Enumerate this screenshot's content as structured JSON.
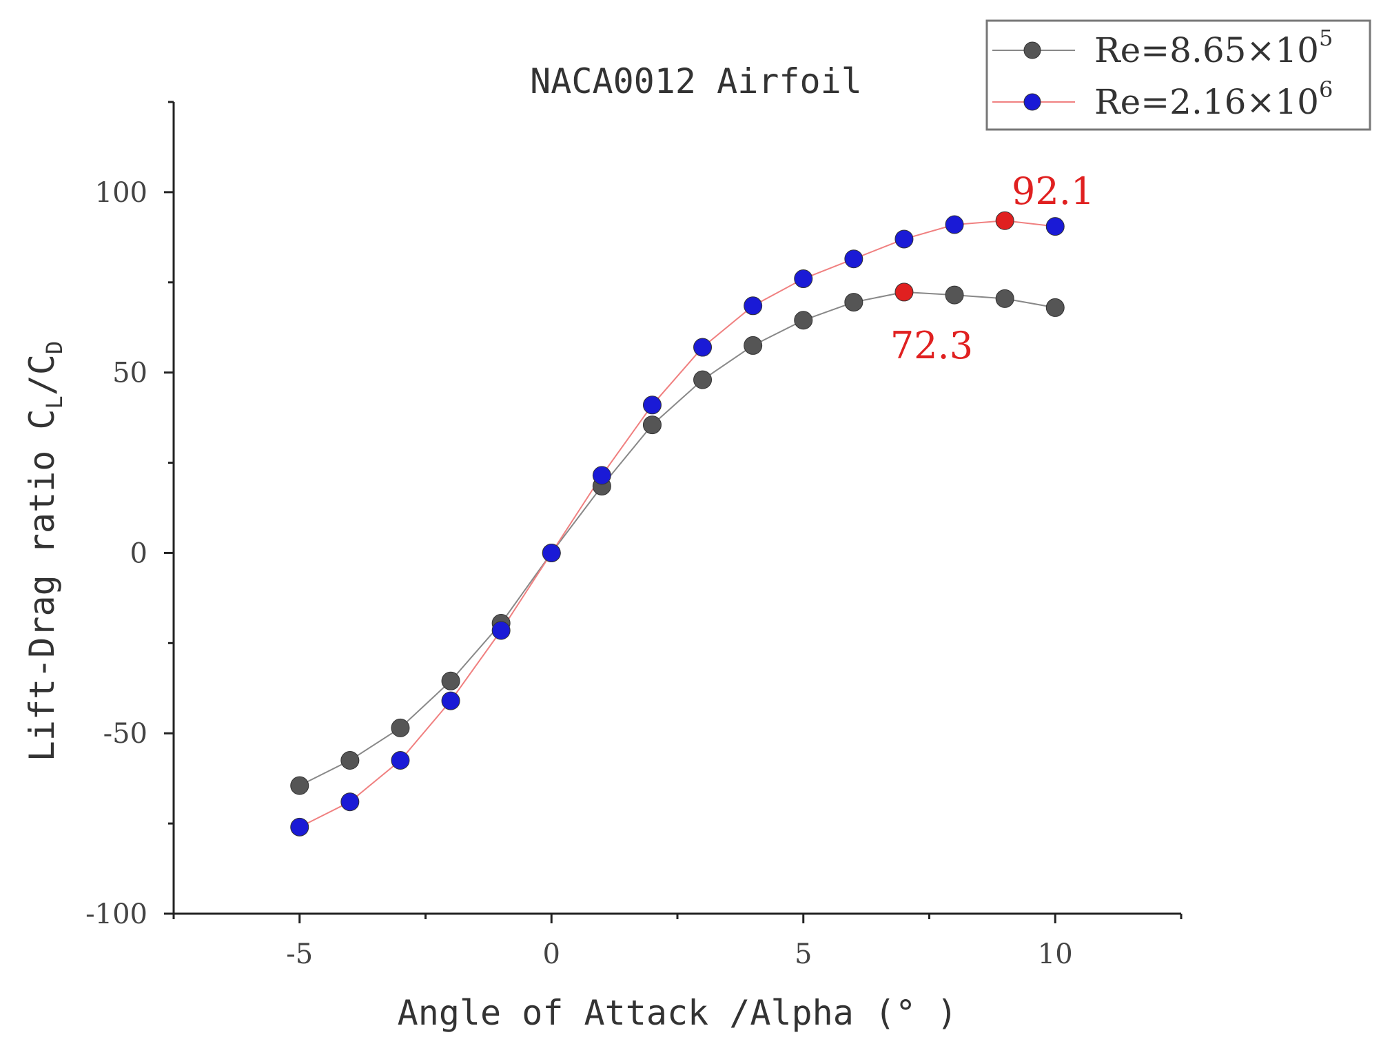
{
  "chart_data": {
    "type": "line",
    "title": "NACA0012 Airfoil",
    "xlabel": "Angle of Attack /Alpha (° )",
    "ylabel": "Lift-Drag ratio C_L/C_D",
    "ylabel_parts": {
      "main": "Lift-Drag ratio C",
      "sub1": "L",
      "slash": "/C",
      "sub2": "D"
    },
    "xlim": [
      -7.5,
      12.5
    ],
    "ylim": [
      -100,
      125
    ],
    "x_ticks": [
      -5,
      0,
      5,
      10
    ],
    "x_tick_labels": [
      "-5",
      "0",
      "5",
      "10"
    ],
    "y_ticks": [
      -100,
      -50,
      0,
      50,
      100
    ],
    "y_tick_labels": [
      "-100",
      "-50",
      "0",
      "50",
      "100"
    ],
    "legend_position": "top-right",
    "grid": false,
    "x": [
      -5,
      -4,
      -3,
      -2,
      -1,
      0,
      1,
      2,
      3,
      4,
      5,
      6,
      7,
      8,
      9,
      10
    ],
    "series": [
      {
        "name": "Re=8.65×10^5",
        "legend_base": "Re=8.65×10",
        "legend_exp": "5",
        "color": "#555555",
        "line_color": "#888888",
        "values": [
          -64.5,
          -57.5,
          -48.5,
          -35.5,
          -19.5,
          0,
          18.5,
          35.5,
          48,
          57.5,
          64.5,
          69.5,
          72.3,
          71.5,
          70.5,
          68
        ]
      },
      {
        "name": "Re=2.16×10^6",
        "legend_base": "Re=2.16×10",
        "legend_exp": "6",
        "color": "#1a1ad6",
        "line_color": "#f08080",
        "values": [
          -76,
          -69,
          -57.5,
          -41,
          -21.5,
          0,
          21.5,
          41,
          57,
          68.5,
          76,
          81.5,
          87,
          91,
          92.1,
          90.5
        ]
      }
    ],
    "highlights": [
      {
        "series": 0,
        "x": 7,
        "value": 72.3,
        "label": "72.3",
        "color": "#e02020"
      },
      {
        "series": 1,
        "x": 9,
        "value": 92.1,
        "label": "92.1",
        "color": "#e02020"
      }
    ]
  }
}
